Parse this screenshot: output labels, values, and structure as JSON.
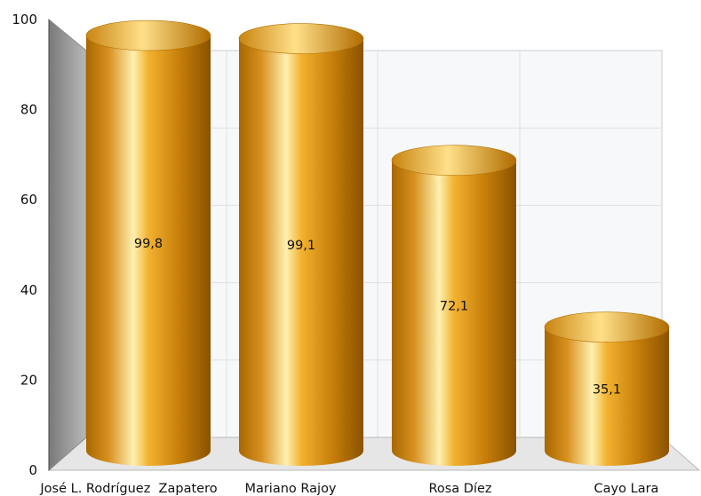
{
  "chart_data": {
    "type": "bar",
    "style": "3d-cylinder",
    "categories": [
      "José L. Rodríguez  Zapatero",
      "Mariano Rajoy",
      "Rosa Díez",
      "Cayo Lara"
    ],
    "values": [
      99.8,
      99.1,
      72.1,
      35.1
    ],
    "value_labels": [
      "99,8",
      "99,1",
      "72,1",
      "35,1"
    ],
    "yticks": [
      "0",
      "20",
      "40",
      "60",
      "80",
      "100"
    ],
    "ylim": [
      0,
      100
    ],
    "grid": true,
    "bar_color": "#d08a10"
  }
}
